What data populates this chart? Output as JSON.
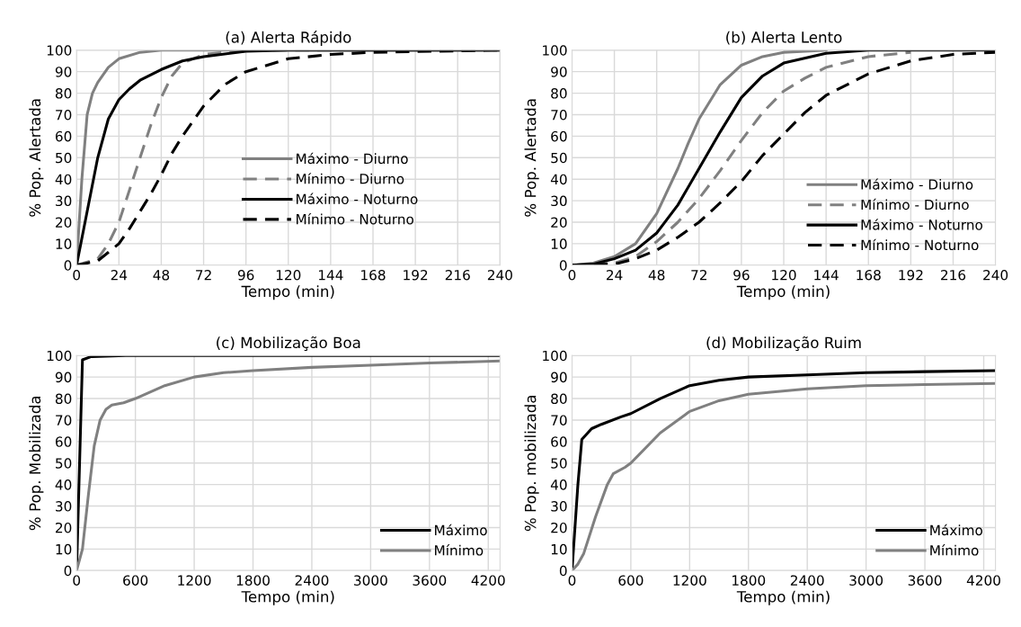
{
  "chart_data": [
    {
      "type": "line",
      "title": "(a) Alerta Rápido",
      "xlabel": "Tempo (min)",
      "ylabel": "% Pop. Alertada",
      "xlim": [
        0,
        240
      ],
      "xticks": [
        0,
        24,
        48,
        72,
        96,
        120,
        144,
        168,
        192,
        216,
        240
      ],
      "ylim": [
        0,
        100
      ],
      "yticks": [
        0,
        10,
        20,
        30,
        40,
        50,
        60,
        70,
        80,
        90,
        100
      ],
      "grid": true,
      "legend": "bottom",
      "marker": "none",
      "series": [
        {
          "name": "Máximo - Diurno",
          "color": "#808080",
          "line_style": "solid",
          "x": [
            0,
            3,
            6,
            9,
            12,
            18,
            24,
            36,
            48,
            240
          ],
          "values": [
            0,
            40,
            70,
            80,
            85,
            92,
            96,
            99,
            100,
            100
          ]
        },
        {
          "name": "Mínimo - Diurno",
          "color": "#808080",
          "line_style": "dashed",
          "x": [
            0,
            12,
            18,
            24,
            30,
            36,
            42,
            48,
            54,
            60,
            72,
            96,
            240
          ],
          "values": [
            0,
            3,
            10,
            20,
            35,
            50,
            65,
            78,
            88,
            94,
            98,
            100,
            100
          ]
        },
        {
          "name": "Máximo - Noturno",
          "color": "#000000",
          "line_style": "solid",
          "x": [
            0,
            6,
            12,
            18,
            24,
            30,
            36,
            48,
            60,
            72,
            96,
            120,
            240
          ],
          "values": [
            0,
            25,
            50,
            68,
            77,
            82,
            86,
            91,
            95,
            97,
            99.5,
            100,
            100
          ]
        },
        {
          "name": "Mínimo - Noturno",
          "color": "#000000",
          "line_style": "dashed",
          "x": [
            0,
            6,
            12,
            18,
            24,
            30,
            36,
            42,
            48,
            54,
            60,
            66,
            72,
            84,
            96,
            120,
            144,
            168,
            240
          ],
          "values": [
            0,
            1,
            2,
            6,
            10,
            17,
            25,
            33,
            42,
            52,
            60,
            67,
            74,
            84,
            90,
            96,
            98,
            99,
            100
          ]
        }
      ]
    },
    {
      "type": "line",
      "title": "(b) Alerta Lento",
      "xlabel": "Tempo (min)",
      "ylabel": "% Pop. Alertada",
      "xlim": [
        0,
        240
      ],
      "xticks": [
        0,
        24,
        48,
        72,
        96,
        120,
        144,
        168,
        192,
        216,
        240
      ],
      "ylim": [
        0,
        100
      ],
      "yticks": [
        0,
        10,
        20,
        30,
        40,
        50,
        60,
        70,
        80,
        90,
        100
      ],
      "grid": true,
      "legend": "bottom right",
      "marker": "none",
      "series": [
        {
          "name": "Máximo - Diurno",
          "color": "#808080",
          "line_style": "solid",
          "x": [
            0,
            12,
            24,
            36,
            48,
            60,
            66,
            72,
            84,
            96,
            108,
            120,
            144
          ],
          "values": [
            0,
            1,
            4,
            10,
            24,
            45,
            57,
            68,
            84,
            93,
            97,
            99,
            100
          ]
        },
        {
          "name": "Mínimo - Diurno",
          "color": "#808080",
          "line_style": "dashed",
          "x": [
            0,
            24,
            36,
            48,
            60,
            72,
            84,
            96,
            108,
            120,
            132,
            144,
            168,
            192
          ],
          "values": [
            0,
            1,
            4,
            11,
            20,
            31,
            44,
            58,
            71,
            81,
            87,
            92,
            97,
            99
          ]
        },
        {
          "name": "Máximo - Noturno",
          "color": "#000000",
          "line_style": "solid",
          "x": [
            0,
            12,
            24,
            36,
            48,
            60,
            72,
            84,
            96,
            108,
            120,
            144,
            168,
            240
          ],
          "values": [
            0,
            0.5,
            3,
            7,
            15,
            28,
            45,
            62,
            78,
            88,
            94,
            98.5,
            100,
            100
          ]
        },
        {
          "name": "Mínimo - Noturno",
          "color": "#000000",
          "line_style": "dashed",
          "x": [
            0,
            24,
            36,
            48,
            60,
            72,
            84,
            96,
            108,
            120,
            132,
            144,
            168,
            192,
            216,
            240
          ],
          "values": [
            0,
            0.5,
            3,
            7,
            13,
            20,
            29,
            39,
            51,
            61,
            71,
            79,
            89,
            95,
            98,
            99
          ]
        }
      ]
    },
    {
      "type": "line",
      "title": "(c) Mobilização Boa",
      "xlabel": "Tempo (min)",
      "ylabel": "% Pop. Mobilizada",
      "xlim": [
        0,
        4320
      ],
      "xticks": [
        0,
        600,
        1200,
        1800,
        2400,
        3000,
        3600,
        4200
      ],
      "ylim": [
        0,
        100
      ],
      "yticks": [
        0,
        10,
        20,
        30,
        40,
        50,
        60,
        70,
        80,
        90,
        100
      ],
      "grid": true,
      "legend": "bottom right",
      "marker": "none",
      "line_style": "solid",
      "series": [
        {
          "name": "Máximo",
          "color": "#000000",
          "x": [
            0,
            60,
            150,
            500,
            4320
          ],
          "values": [
            0,
            98,
            99.5,
            100,
            100
          ]
        },
        {
          "name": "Mínimo",
          "color": "#808080",
          "x": [
            0,
            60,
            120,
            180,
            240,
            300,
            360,
            480,
            600,
            900,
            1200,
            1500,
            1800,
            2400,
            3000,
            3600,
            4320
          ],
          "values": [
            0,
            10,
            35,
            58,
            70,
            75,
            77,
            78,
            80,
            86,
            90,
            92,
            93,
            94.5,
            95.5,
            96.5,
            97.5
          ]
        }
      ]
    },
    {
      "type": "line",
      "title": "(d) Mobilização Ruim",
      "xlabel": "Tempo (min)",
      "ylabel": "% Pop. mobilizada",
      "xlim": [
        0,
        4320
      ],
      "xticks": [
        0,
        600,
        1200,
        1800,
        2400,
        3000,
        3600,
        4200
      ],
      "ylim": [
        0,
        100
      ],
      "yticks": [
        0,
        10,
        20,
        30,
        40,
        50,
        60,
        70,
        80,
        90,
        100
      ],
      "grid": true,
      "legend": "bottom right",
      "marker": "none",
      "line_style": "solid",
      "series": [
        {
          "name": "Máximo",
          "color": "#000000",
          "x": [
            0,
            60,
            100,
            200,
            300,
            500,
            600,
            900,
            1200,
            1500,
            1800,
            2400,
            3000,
            3600,
            4320
          ],
          "values": [
            0,
            40,
            61,
            66,
            68,
            71.5,
            73,
            80,
            86,
            88.5,
            90,
            91,
            92,
            92.5,
            93
          ]
        },
        {
          "name": "Mínimo",
          "color": "#808080",
          "x": [
            0,
            60,
            120,
            240,
            360,
            420,
            540,
            600,
            900,
            1200,
            1500,
            1800,
            2400,
            3000,
            3600,
            4320
          ],
          "values": [
            0,
            3,
            8,
            25,
            40,
            45,
            48,
            50,
            64,
            74,
            79,
            82,
            84.5,
            86,
            86.5,
            87
          ]
        }
      ]
    }
  ]
}
